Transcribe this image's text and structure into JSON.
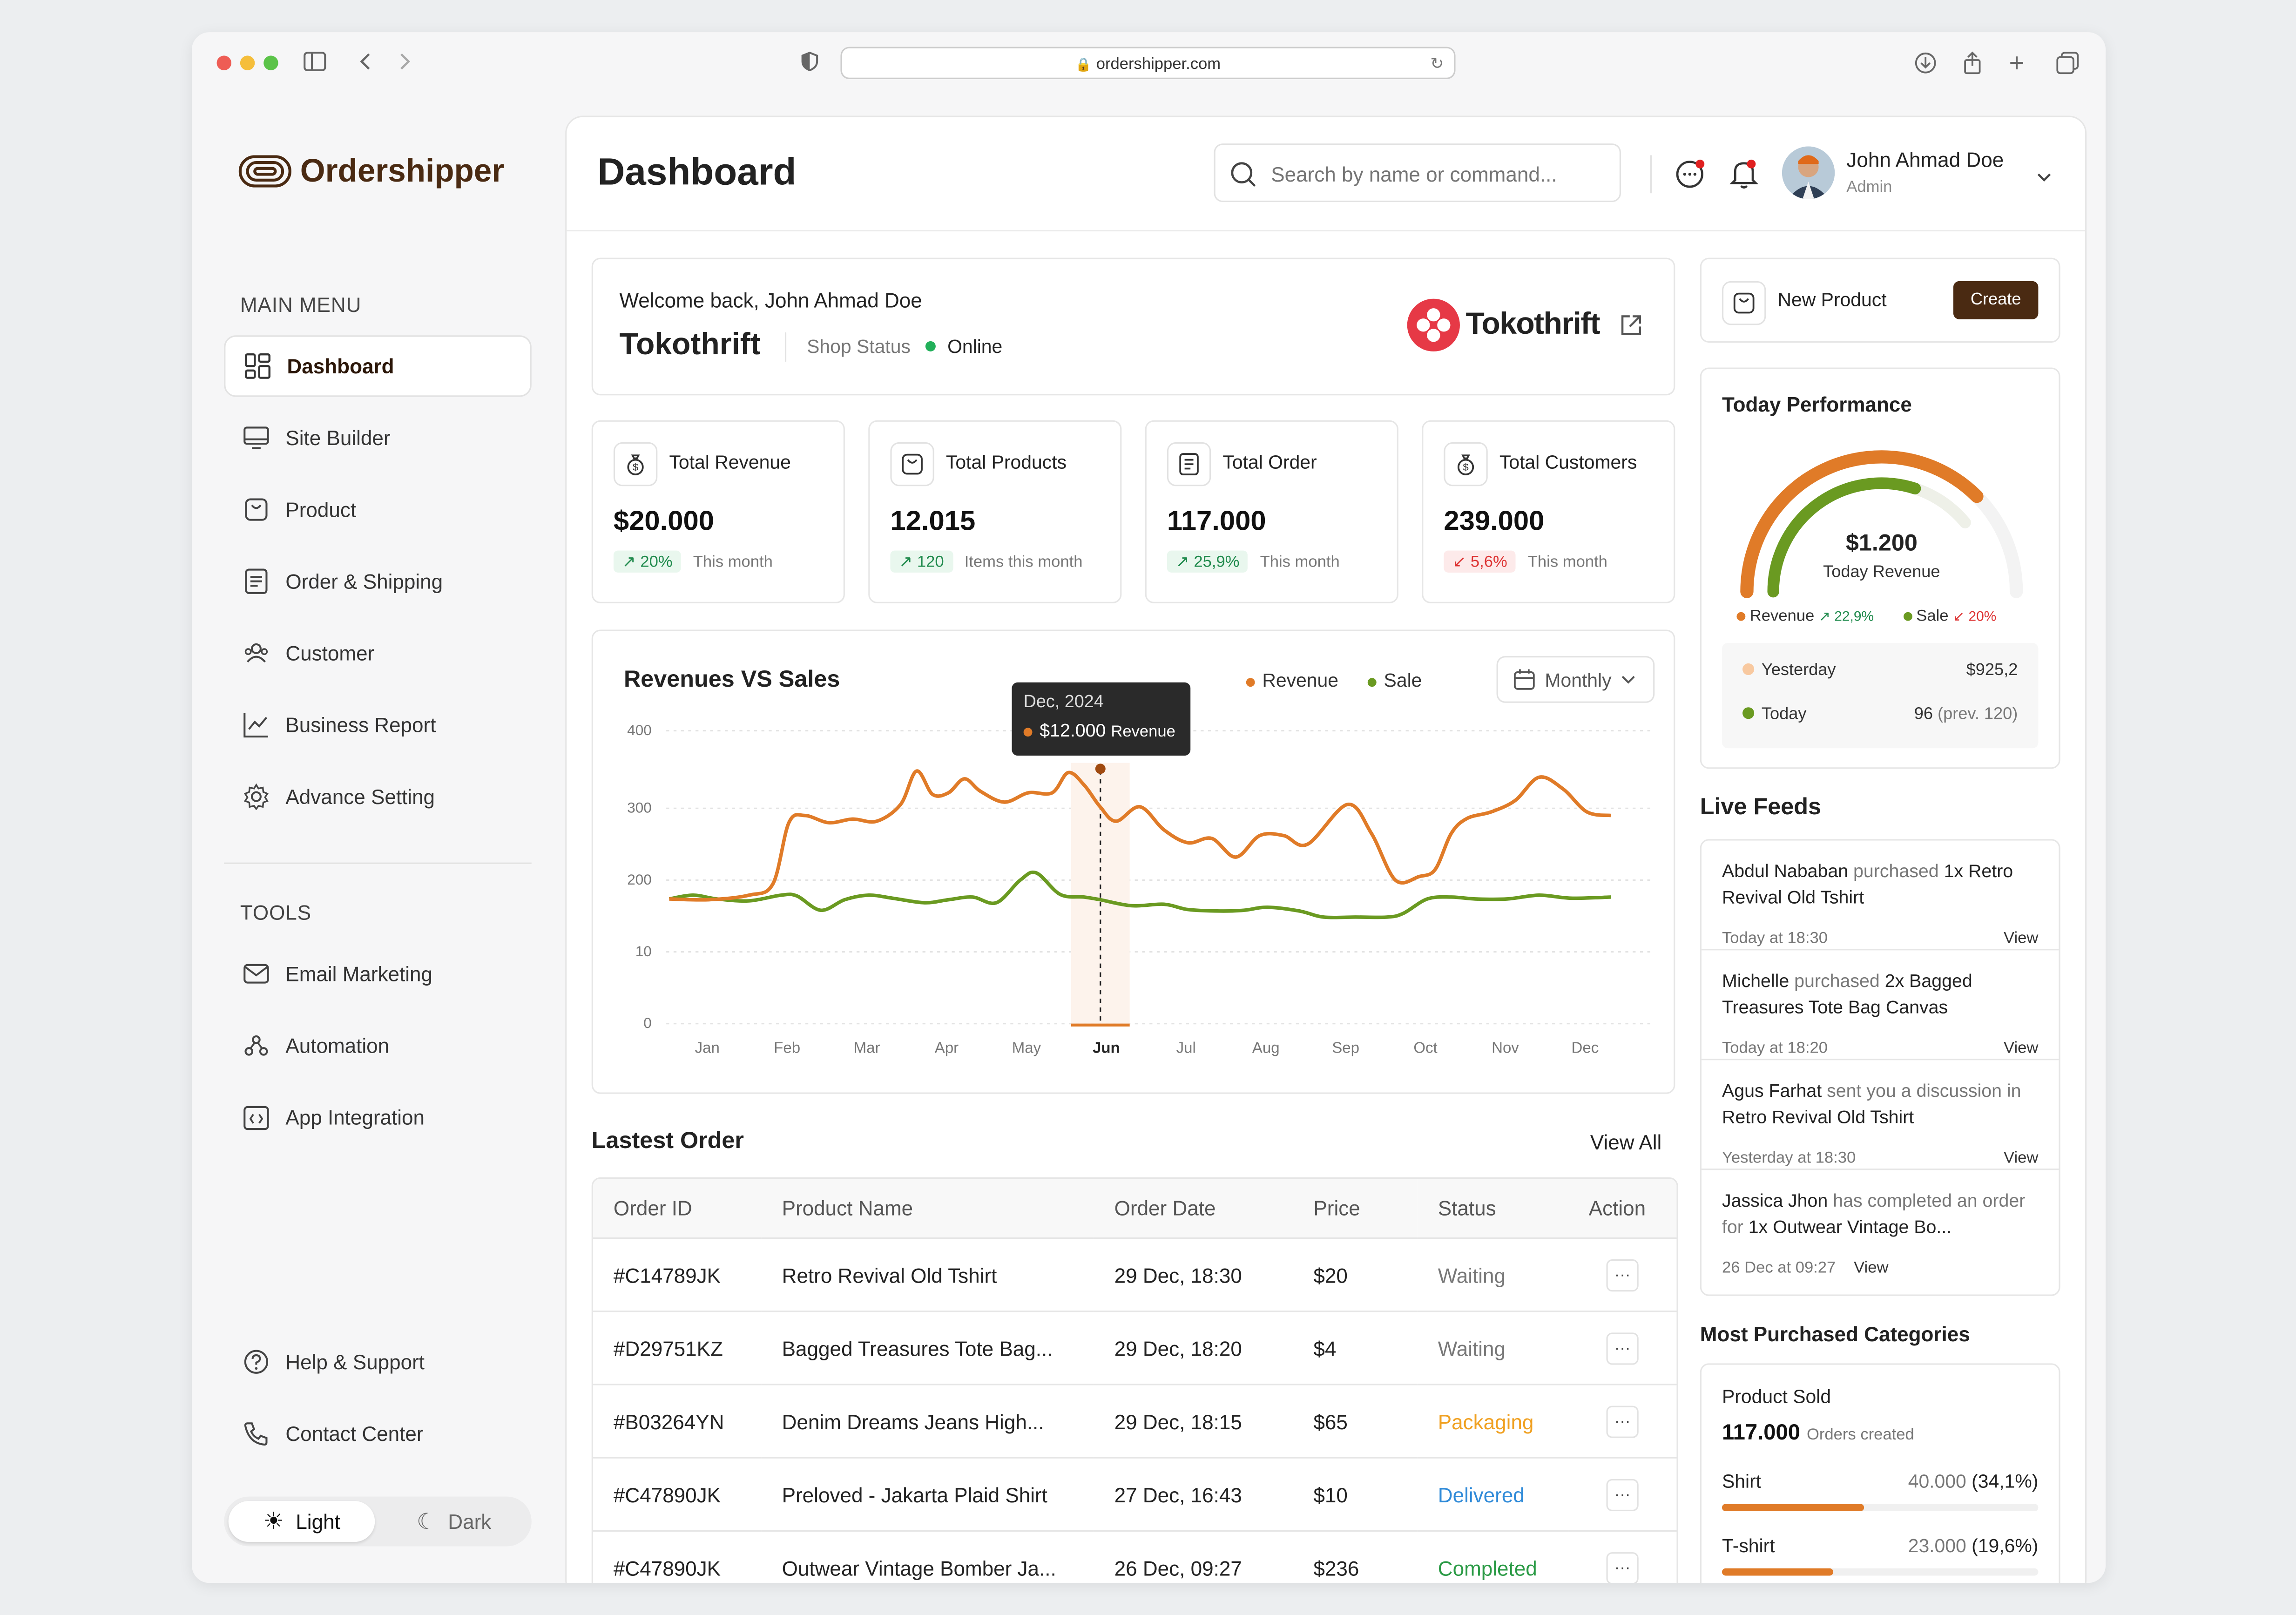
{
  "browser": {
    "url": "ordershipper.com"
  },
  "brand": {
    "name": "Ordershipper",
    "accent": "#4a2a12"
  },
  "sidebar": {
    "main_menu_label": "MAIN MENU",
    "main_items": [
      {
        "label": "Dashboard",
        "icon": "grid-icon"
      },
      {
        "label": "Site Builder",
        "icon": "monitor-icon"
      },
      {
        "label": "Product",
        "icon": "box-icon"
      },
      {
        "label": "Order & Shipping",
        "icon": "clipboard-icon"
      },
      {
        "label": "Customer",
        "icon": "users-icon"
      },
      {
        "label": "Business Report",
        "icon": "chart-icon"
      },
      {
        "label": "Advance Setting",
        "icon": "gear-icon"
      }
    ],
    "tools_label": "TOOLS",
    "tool_items": [
      {
        "label": "Email Marketing",
        "icon": "mail-icon"
      },
      {
        "label": "Automation",
        "icon": "nodes-icon"
      },
      {
        "label": "App Integration",
        "icon": "code-icon"
      }
    ],
    "bottom_items": [
      {
        "label": "Help & Support",
        "icon": "help-icon"
      },
      {
        "label": "Contact Center",
        "icon": "phone-icon"
      }
    ],
    "theme": {
      "light": "Light",
      "dark": "Dark"
    }
  },
  "header": {
    "title": "Dashboard",
    "search_placeholder": "Search by name or command...",
    "user_name": "John Ahmad Doe",
    "user_role": "Admin"
  },
  "welcome": {
    "greeting": "Welcome back, John Ahmad Doe",
    "shop_name": "Tokothrift",
    "shop_status_label": "Shop Status",
    "shop_status": "Online",
    "shop_logo_text": "Tokothrift"
  },
  "stats": [
    {
      "label": "Total Revenue",
      "value": "$20.000",
      "change": "20%",
      "note": "This month",
      "trend": "up"
    },
    {
      "label": "Total Products",
      "value": "12.015",
      "change": "120",
      "note": "Items this month",
      "trend": "up"
    },
    {
      "label": "Total Order",
      "value": "117.000",
      "change": "25,9%",
      "note": "This month",
      "trend": "up"
    },
    {
      "label": "Total Customers",
      "value": "239.000",
      "change": "5,6%",
      "note": "This month",
      "trend": "down"
    }
  ],
  "chart_data": {
    "type": "line",
    "title": "Revenues VS Sales",
    "period": "Monthly",
    "categories": [
      "Jan",
      "Feb",
      "Mar",
      "Apr",
      "May",
      "Jun",
      "Jul",
      "Aug",
      "Sep",
      "Oct",
      "Nov",
      "Dec"
    ],
    "y_ticks": [
      "0",
      "10",
      "200",
      "300",
      "400"
    ],
    "highlight_category": "Jun",
    "tooltip": {
      "title": "Dec, 2024",
      "value": "$12.000",
      "series": "Revenue"
    },
    "legend_position": "top-right",
    "grid": true,
    "series": [
      {
        "name": "Revenue",
        "color": "#e07b28",
        "values": [
          [
            0,
            150
          ],
          [
            0.5,
            148
          ],
          [
            1,
            160
          ],
          [
            1.3,
            190
          ],
          [
            1.5,
            280
          ],
          [
            1.7,
            290
          ],
          [
            2,
            280
          ],
          [
            2.3,
            285
          ],
          [
            2.6,
            282
          ],
          [
            2.9,
            305
          ],
          [
            3.1,
            348
          ],
          [
            3.3,
            318
          ],
          [
            3.5,
            320
          ],
          [
            3.7,
            338
          ],
          [
            3.9,
            322
          ],
          [
            4.2,
            308
          ],
          [
            4.5,
            320
          ],
          [
            4.8,
            320
          ],
          [
            5,
            346
          ],
          [
            5.2,
            330
          ],
          [
            5.4,
            302
          ],
          [
            5.6,
            282
          ],
          [
            5.9,
            302
          ],
          [
            6.2,
            270
          ],
          [
            6.5,
            252
          ],
          [
            6.8,
            258
          ],
          [
            7.1,
            232
          ],
          [
            7.4,
            262
          ],
          [
            7.7,
            262
          ],
          [
            8,
            250
          ],
          [
            8.5,
            305
          ],
          [
            8.8,
            265
          ],
          [
            9.1,
            200
          ],
          [
            9.4,
            205
          ],
          [
            9.6,
            215
          ],
          [
            9.8,
            265
          ],
          [
            10,
            286
          ],
          [
            10.3,
            295
          ],
          [
            10.6,
            310
          ],
          [
            10.9,
            340
          ],
          [
            11.2,
            325
          ],
          [
            11.5,
            295
          ],
          [
            11.8,
            290
          ]
        ]
      },
      {
        "name": "Sale",
        "color": "#6a9a21",
        "values": [
          [
            0,
            150
          ],
          [
            0.3,
            160
          ],
          [
            0.6,
            150
          ],
          [
            1,
            145
          ],
          [
            1.4,
            160
          ],
          [
            1.6,
            158
          ],
          [
            1.9,
            120
          ],
          [
            2.2,
            148
          ],
          [
            2.5,
            160
          ],
          [
            2.8,
            152
          ],
          [
            3.2,
            140
          ],
          [
            3.5,
            148
          ],
          [
            3.8,
            155
          ],
          [
            4.1,
            140
          ],
          [
            4.4,
            200
          ],
          [
            4.6,
            210
          ],
          [
            4.9,
            162
          ],
          [
            5.2,
            155
          ],
          [
            5.4,
            148
          ],
          [
            5.8,
            132
          ],
          [
            6.2,
            136
          ],
          [
            6.5,
            122
          ],
          [
            6.9,
            118
          ],
          [
            7.2,
            120
          ],
          [
            7.5,
            128
          ],
          [
            7.9,
            118
          ],
          [
            8.2,
            102
          ],
          [
            8.6,
            102
          ],
          [
            9,
            102
          ],
          [
            9.2,
            112
          ],
          [
            9.5,
            150
          ],
          [
            9.8,
            155
          ],
          [
            10.1,
            150
          ],
          [
            10.5,
            150
          ],
          [
            10.9,
            160
          ],
          [
            11.3,
            152
          ],
          [
            11.8,
            155
          ]
        ]
      }
    ]
  },
  "orders": {
    "title": "Lastest Order",
    "view_all": "View All",
    "columns": [
      "Order ID",
      "Product Name",
      "Order Date",
      "Price",
      "Status",
      "Action"
    ],
    "rows": [
      {
        "id": "#C14789JK",
        "product": "Retro Revival Old Tshirt",
        "date": "29 Dec, 18:30",
        "price": "$20",
        "status": "Waiting",
        "status_color": "#777777"
      },
      {
        "id": "#D29751KZ",
        "product": "Bagged Treasures Tote Bag...",
        "date": "29 Dec, 18:20",
        "price": "$4",
        "status": "Waiting",
        "status_color": "#777777"
      },
      {
        "id": "#B03264YN",
        "product": "Denim Dreams Jeans High...",
        "date": "29 Dec, 18:15",
        "price": "$65",
        "status": "Packaging",
        "status_color": "#f0a020"
      },
      {
        "id": "#C47890JK",
        "product": "Preloved - Jakarta Plaid Shirt",
        "date": "27 Dec, 16:43",
        "price": "$10",
        "status": "Delivered",
        "status_color": "#2f8ad8"
      },
      {
        "id": "#C47890JK",
        "product": "Outwear Vintage Bomber Ja...",
        "date": "26 Dec, 09:27",
        "price": "$236",
        "status": "Completed",
        "status_color": "#2a9a45"
      }
    ]
  },
  "new_product": {
    "label": "New Product",
    "button": "Create"
  },
  "performance": {
    "title": "Today Performance",
    "value": "$1.200",
    "caption": "Today Revenue",
    "revenue_level": 0.75,
    "sale_level": 0.6,
    "legend": [
      {
        "name": "Revenue",
        "change": "22,9%",
        "trend": "up"
      },
      {
        "name": "Sale",
        "change": "20%",
        "trend": "down"
      }
    ],
    "rows": [
      {
        "label": "Yesterday",
        "value": "$925,2",
        "extra": ""
      },
      {
        "label": "Today",
        "value": "96",
        "extra": "(prev. 120)"
      }
    ]
  },
  "feeds": {
    "title": "Live Feeds",
    "view_label": "View",
    "items": [
      {
        "actor": "Abdul Nababan",
        "verb": " purchased ",
        "object": "1x Retro Revival Old Tshirt",
        "time": "Today at 18:30"
      },
      {
        "actor": "Michelle",
        "verb": " purchased ",
        "object": "2x Bagged Treasures Tote Bag Canvas",
        "time": "Today at 18:20"
      },
      {
        "actor": "Agus Farhat",
        "verb": " sent you a discussion in ",
        "object": "Retro Revival Old Tshirt",
        "time": "Yesterday at 18:30"
      },
      {
        "actor": "Jassica Jhon",
        "verb": " has completed an order for ",
        "object": "1x Outwear Vintage Bo...",
        "time": "26 Dec at 09:27"
      }
    ]
  },
  "categories": {
    "title": "Most Purchased Categories",
    "card_title": "Product Sold",
    "total": "117.000",
    "total_note": "Orders created",
    "items": [
      {
        "name": "Shirt",
        "value": "40.000",
        "pct": "(34,1%)",
        "fraction": 0.45
      },
      {
        "name": "T-shirt",
        "value": "23.000",
        "pct": "(19,6%)",
        "fraction": 0.35
      }
    ]
  }
}
